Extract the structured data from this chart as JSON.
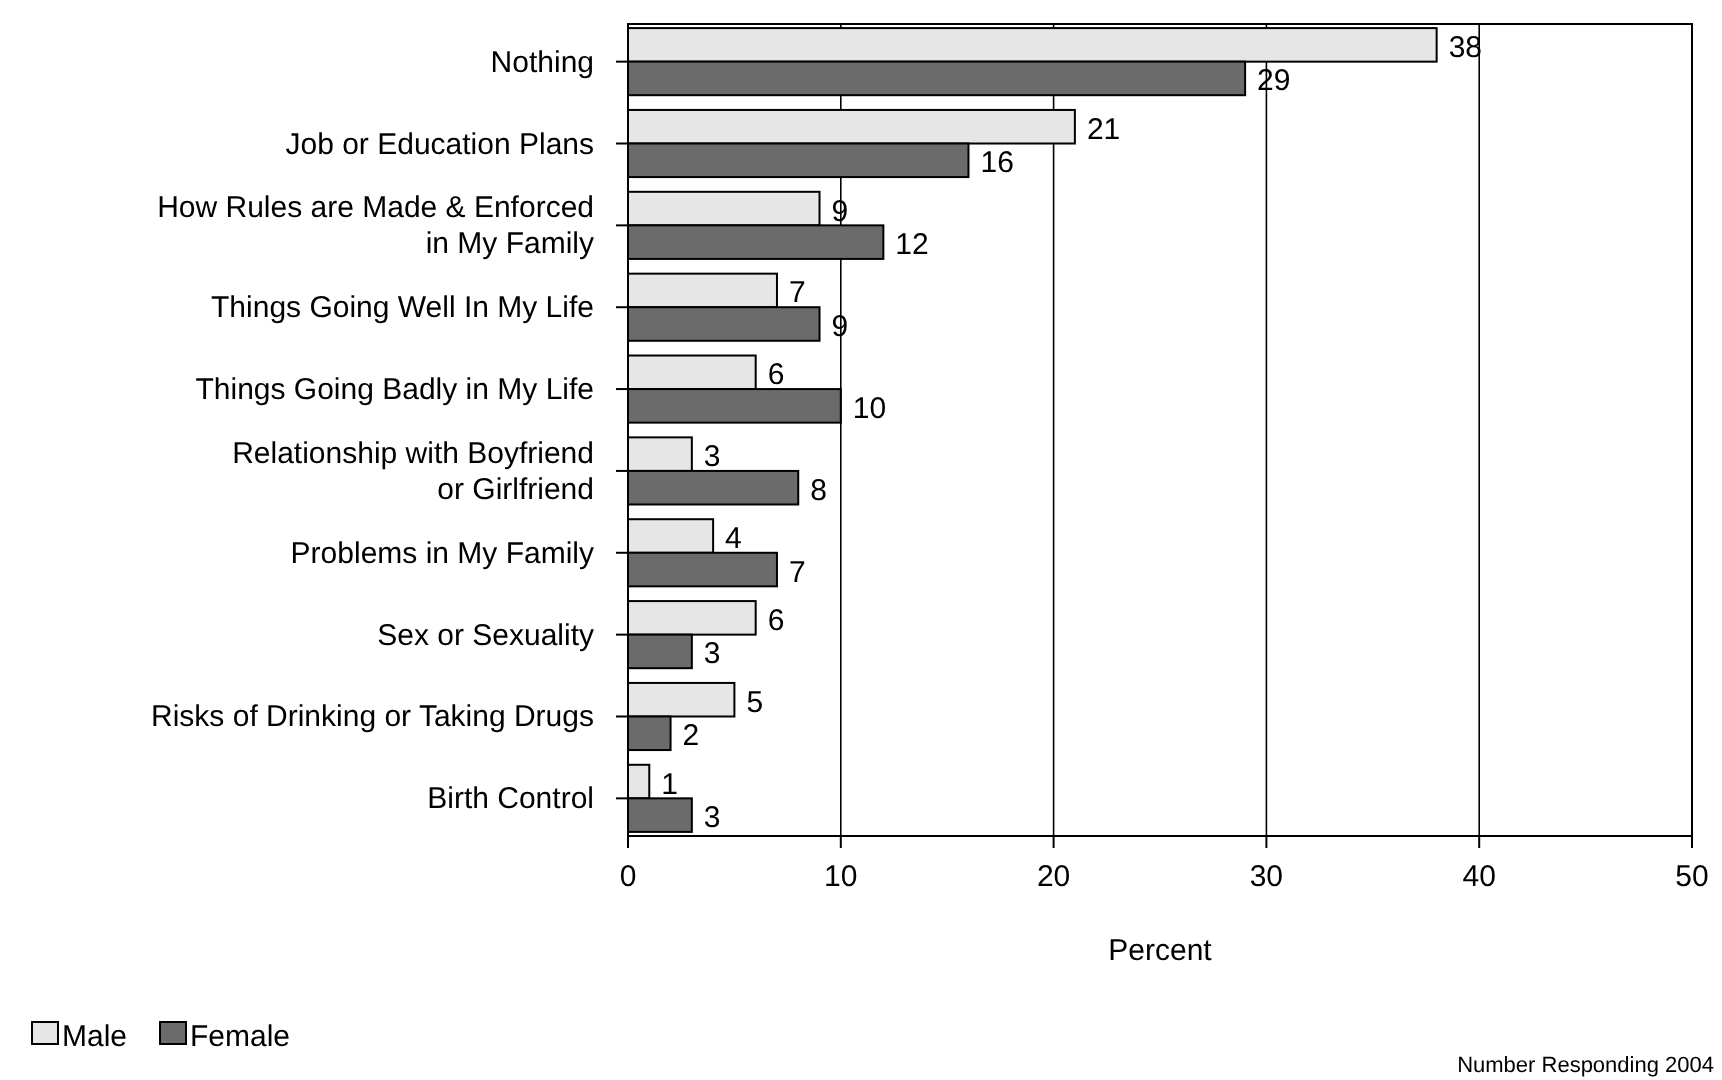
{
  "chart_data": {
    "type": "bar",
    "orientation": "horizontal",
    "categories": [
      "Nothing",
      "Job or Education Plans",
      "How Rules are Made & Enforced\nin My Family",
      "Things Going Well In My Life",
      "Things Going Badly in My Life",
      "Relationship with Boyfriend\nor Girlfriend",
      "Problems in My Family",
      "Sex or Sexuality",
      "Risks of Drinking or Taking Drugs",
      "Birth Control"
    ],
    "series": [
      {
        "name": "Male",
        "color": "#e6e6e6",
        "values": [
          38,
          21,
          9,
          7,
          6,
          3,
          4,
          6,
          5,
          1
        ]
      },
      {
        "name": "Female",
        "color": "#6b6b6b",
        "values": [
          29,
          16,
          12,
          9,
          10,
          8,
          7,
          3,
          2,
          3
        ]
      }
    ],
    "xlim": [
      0,
      50
    ],
    "xticks": [
      0,
      10,
      20,
      30,
      40,
      50
    ],
    "xlabel": "Percent",
    "grid": "x",
    "legend": "bottom left",
    "data_labels": true,
    "annotations": [
      "Number Responding 2004"
    ]
  }
}
